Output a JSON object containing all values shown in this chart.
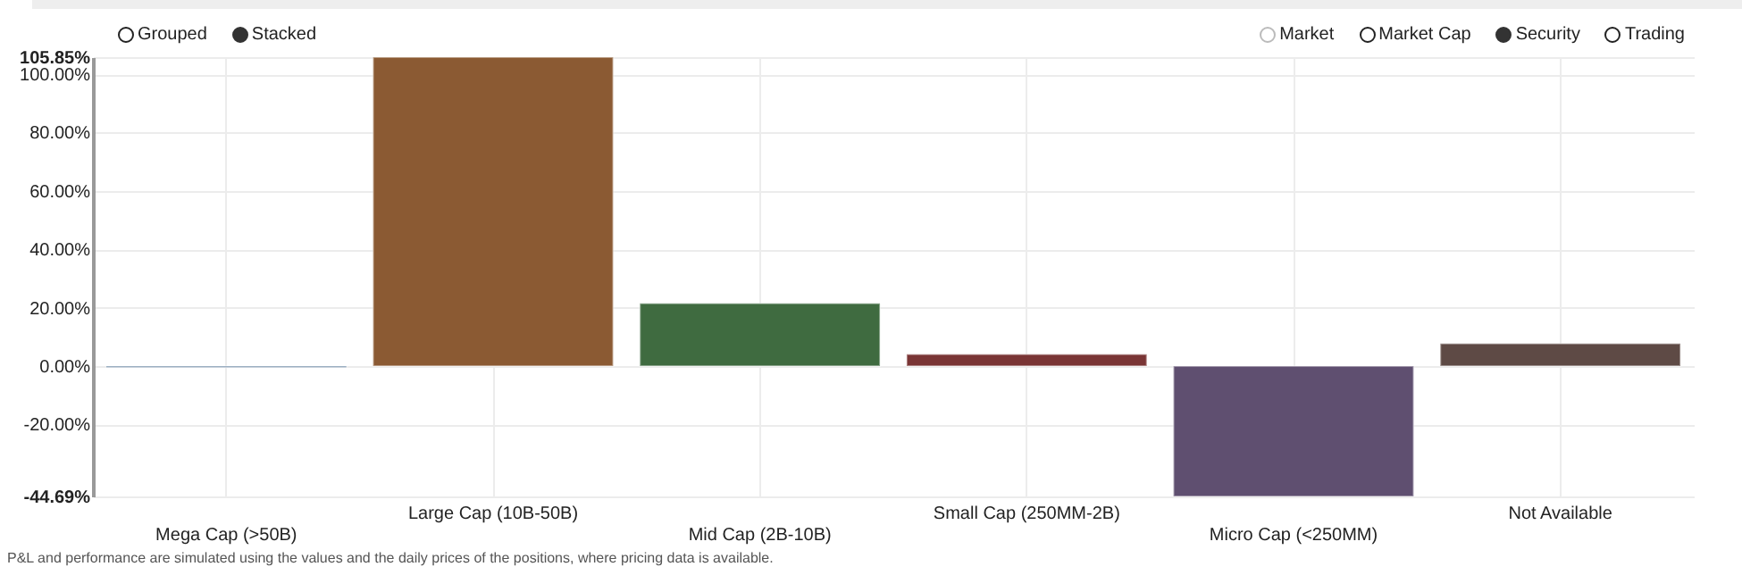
{
  "chart_data": {
    "type": "bar",
    "categories": [
      "Mega Cap (>50B)",
      "Large Cap (10B-50B)",
      "Mid Cap (2B-10B)",
      "Small Cap (250MM-2B)",
      "Micro Cap (<250MM)",
      "Not Available"
    ],
    "values": [
      -0.5,
      105.85,
      21.5,
      4,
      -44.69,
      7.7
    ],
    "colors": [
      "#5a7a99",
      "#8b5a33",
      "#3f6b40",
      "#7a3535",
      "#5f4f70",
      "#5e4a45"
    ],
    "ylim": [
      -44.69,
      105.85
    ],
    "yticks": [
      {
        "value": -44.69,
        "label": "-44.69%"
      },
      {
        "value": -20,
        "label": "-20.00%"
      },
      {
        "value": 0,
        "label": "0.00%"
      },
      {
        "value": 20,
        "label": "20.00%"
      },
      {
        "value": 40,
        "label": "40.00%"
      },
      {
        "value": 60,
        "label": "60.00%"
      },
      {
        "value": 80,
        "label": "80.00%"
      },
      {
        "value": 100,
        "label": "100.00%"
      },
      {
        "value": 105.85,
        "label": "105.85%"
      }
    ],
    "grid": true,
    "annotations": [
      "Grouped",
      "Stacked",
      "Market",
      "Market Cap",
      "Security",
      "Trading",
      "P&L and performance are simulated using the values and the daily prices of the positions, where pricing data is available."
    ]
  }
}
